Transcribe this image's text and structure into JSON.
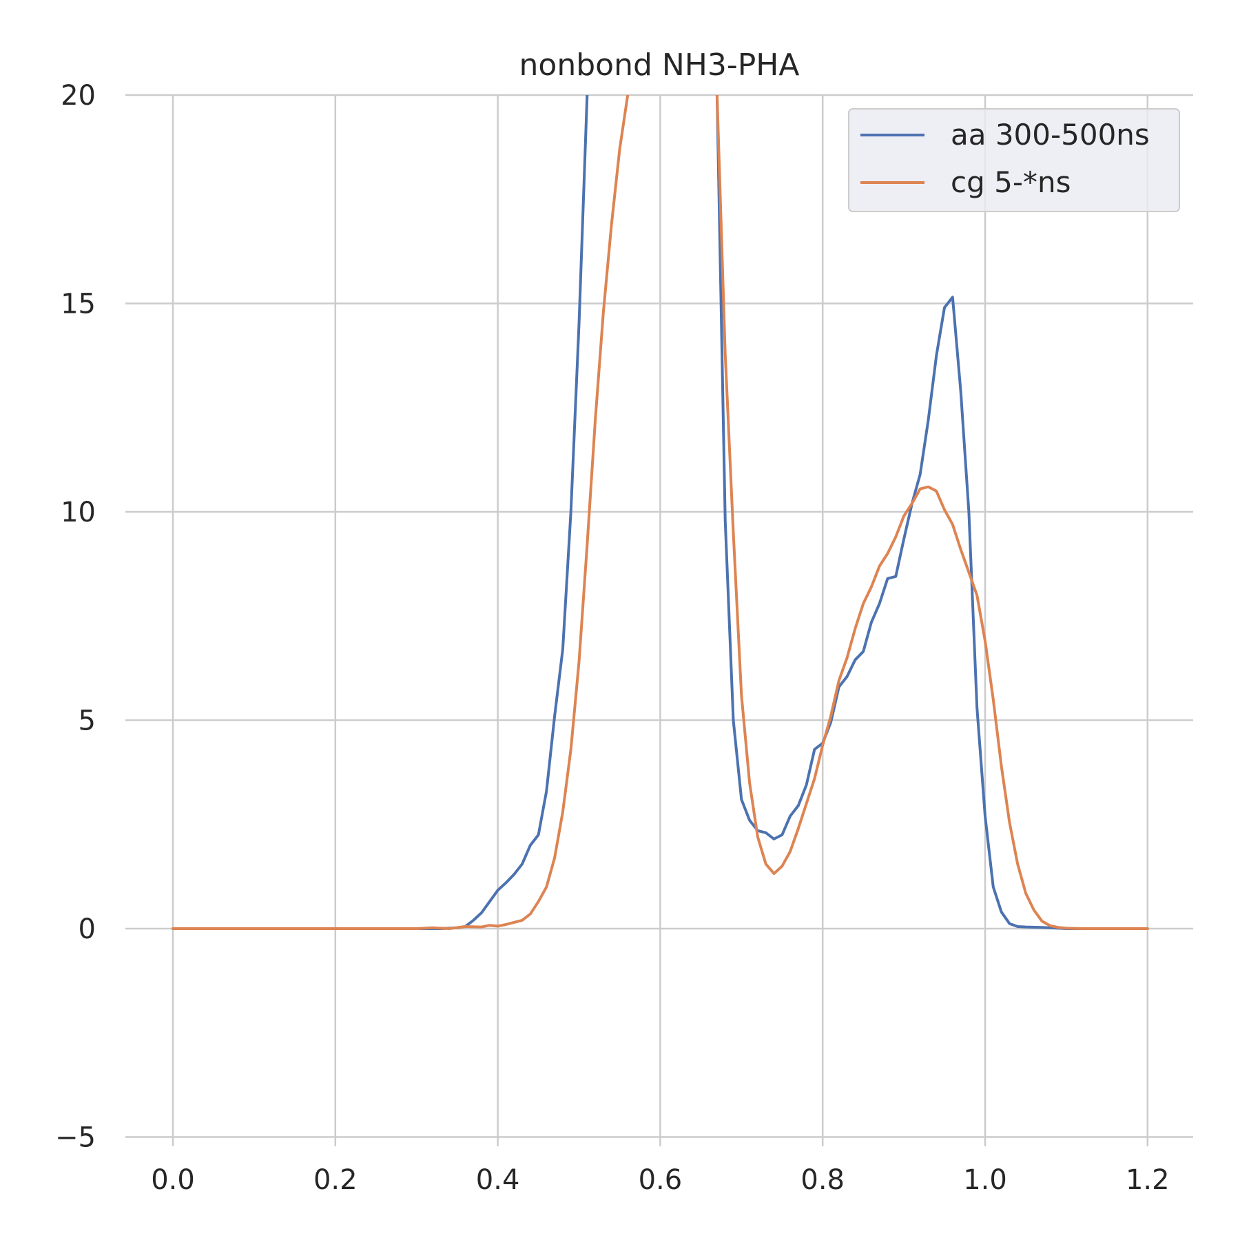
{
  "chart_data": {
    "type": "line",
    "title": "nonbond NH3-PHA",
    "xlabel": "",
    "ylabel": "",
    "xlim": [
      -0.06,
      1.26
    ],
    "ylim": [
      -5,
      20
    ],
    "xticks": [
      0.0,
      0.2,
      0.4,
      0.6,
      0.8,
      1.0,
      1.2
    ],
    "xtick_labels": [
      "0.0",
      "0.2",
      "0.4",
      "0.6",
      "0.8",
      "1.0",
      "1.2"
    ],
    "yticks": [
      -5,
      0,
      5,
      10,
      15,
      20
    ],
    "ytick_labels": [
      "−5",
      "0",
      "5",
      "10",
      "15",
      "20"
    ],
    "grid": true,
    "legend_position": "top-right",
    "series": [
      {
        "name": "aa 300-500ns",
        "color": "#4c72b0",
        "x": [
          0.0,
          0.05,
          0.1,
          0.15,
          0.2,
          0.25,
          0.3,
          0.33,
          0.35,
          0.36,
          0.37,
          0.38,
          0.39,
          0.4,
          0.41,
          0.42,
          0.43,
          0.44,
          0.45,
          0.46,
          0.47,
          0.48,
          0.49,
          0.5,
          0.51,
          0.52,
          0.66,
          0.67,
          0.68,
          0.69,
          0.7,
          0.71,
          0.72,
          0.73,
          0.74,
          0.75,
          0.76,
          0.77,
          0.78,
          0.79,
          0.8,
          0.81,
          0.82,
          0.83,
          0.84,
          0.85,
          0.86,
          0.87,
          0.88,
          0.89,
          0.9,
          0.91,
          0.92,
          0.93,
          0.94,
          0.95,
          0.96,
          0.97,
          0.98,
          0.99,
          1.0,
          1.01,
          1.02,
          1.03,
          1.04,
          1.05,
          1.07,
          1.1,
          1.15,
          1.2
        ],
        "y": [
          0,
          0,
          0,
          0,
          0,
          0,
          0,
          0,
          0.02,
          0.05,
          0.2,
          0.38,
          0.65,
          0.92,
          1.1,
          1.3,
          1.55,
          2.0,
          2.25,
          3.3,
          5.1,
          6.7,
          10.0,
          14.5,
          20.0,
          25.0,
          25.0,
          20.0,
          9.8,
          5.0,
          3.1,
          2.6,
          2.35,
          2.3,
          2.15,
          2.25,
          2.7,
          2.95,
          3.45,
          4.3,
          4.45,
          4.95,
          5.8,
          6.05,
          6.45,
          6.65,
          7.35,
          7.8,
          8.4,
          8.45,
          9.35,
          10.2,
          10.9,
          12.2,
          13.75,
          14.9,
          15.15,
          12.9,
          10.0,
          5.3,
          2.7,
          1.0,
          0.4,
          0.12,
          0.05,
          0.04,
          0.03,
          0.0,
          0.0,
          0.0
        ]
      },
      {
        "name": "cg 5-*ns",
        "color": "#dd8452",
        "x": [
          0.0,
          0.05,
          0.1,
          0.15,
          0.2,
          0.25,
          0.3,
          0.32,
          0.34,
          0.36,
          0.38,
          0.39,
          0.4,
          0.41,
          0.42,
          0.43,
          0.44,
          0.45,
          0.46,
          0.47,
          0.48,
          0.49,
          0.5,
          0.51,
          0.52,
          0.53,
          0.54,
          0.55,
          0.56,
          0.57,
          0.66,
          0.67,
          0.68,
          0.69,
          0.7,
          0.71,
          0.72,
          0.73,
          0.74,
          0.75,
          0.76,
          0.77,
          0.78,
          0.79,
          0.8,
          0.81,
          0.82,
          0.83,
          0.84,
          0.85,
          0.86,
          0.87,
          0.88,
          0.89,
          0.9,
          0.91,
          0.92,
          0.93,
          0.94,
          0.95,
          0.96,
          0.97,
          0.98,
          0.99,
          1.0,
          1.01,
          1.02,
          1.03,
          1.04,
          1.05,
          1.06,
          1.07,
          1.08,
          1.09,
          1.1,
          1.12,
          1.15,
          1.2
        ],
        "y": [
          0,
          0,
          0,
          0,
          0,
          0,
          0,
          0.02,
          0.0,
          0.05,
          0.04,
          0.08,
          0.06,
          0.1,
          0.15,
          0.2,
          0.35,
          0.65,
          1.0,
          1.7,
          2.8,
          4.3,
          6.4,
          9.2,
          12.2,
          14.8,
          16.9,
          18.7,
          20.0,
          25.0,
          25.0,
          20.0,
          13.8,
          9.5,
          5.6,
          3.5,
          2.2,
          1.55,
          1.32,
          1.5,
          1.85,
          2.4,
          3.0,
          3.6,
          4.4,
          5.1,
          5.95,
          6.5,
          7.2,
          7.8,
          8.2,
          8.7,
          9.0,
          9.4,
          9.9,
          10.2,
          10.55,
          10.6,
          10.5,
          10.05,
          9.7,
          9.1,
          8.55,
          8.0,
          6.9,
          5.5,
          3.9,
          2.55,
          1.55,
          0.85,
          0.45,
          0.18,
          0.07,
          0.03,
          0.01,
          0.0,
          0.0,
          0.0
        ]
      }
    ]
  }
}
